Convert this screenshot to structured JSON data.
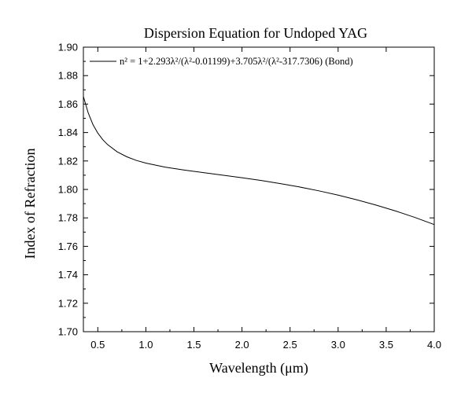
{
  "chart_data": {
    "type": "line",
    "title": "Dispersion Equation for Undoped YAG",
    "xlabel": "Wavelength (μm)",
    "ylabel": "Index of Refraction",
    "xlim": [
      0.35,
      4.0
    ],
    "ylim": [
      1.7,
      1.9
    ],
    "xticks": [
      0.5,
      1.0,
      1.5,
      2.0,
      2.5,
      3.0,
      3.5,
      4.0
    ],
    "xtick_labels": [
      "0.5",
      "1.0",
      "1.5",
      "2.0",
      "2.5",
      "3.0",
      "3.5",
      "4.0"
    ],
    "yticks": [
      1.7,
      1.72,
      1.74,
      1.76,
      1.78,
      1.8,
      1.82,
      1.84,
      1.86,
      1.88,
      1.9
    ],
    "ytick_labels": [
      "1.70",
      "1.72",
      "1.74",
      "1.76",
      "1.78",
      "1.80",
      "1.82",
      "1.84",
      "1.86",
      "1.88",
      "1.90"
    ],
    "grid": false,
    "legend_position": "top",
    "series": [
      {
        "name": "n² = 1+2.293λ²/(λ²-0.01199)+3.705λ²/(λ²-317.7306) (Bond)",
        "color": "#000000",
        "x": [
          0.35,
          0.4,
          0.45,
          0.5,
          0.55,
          0.6,
          0.7,
          0.8,
          0.9,
          1.0,
          1.2,
          1.4,
          1.6,
          1.8,
          2.0,
          2.2,
          2.4,
          2.6,
          2.8,
          3.0,
          3.2,
          3.4,
          3.6,
          3.8,
          4.0
        ],
        "y": [
          1.8653,
          1.8538,
          1.8455,
          1.8396,
          1.8351,
          1.8316,
          1.8265,
          1.823,
          1.8204,
          1.8185,
          1.8157,
          1.8136,
          1.8118,
          1.81,
          1.8082,
          1.8063,
          1.8041,
          1.8017,
          1.799,
          1.796,
          1.7926,
          1.7889,
          1.7848,
          1.7803,
          1.7753
        ]
      }
    ]
  }
}
